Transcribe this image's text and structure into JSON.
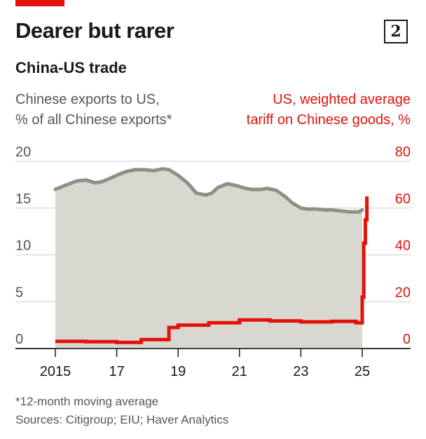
{
  "header": {
    "title": "Dearer but rarer",
    "badge": "2",
    "subtitle": "China-US trade"
  },
  "colors": {
    "accent_red": "#e3120b",
    "grey_line": "#8f8f86",
    "grey_fill": "#d9d8d0",
    "grid": "#cfcfcf",
    "text_grey": "#555555"
  },
  "chart_data": {
    "type": "line",
    "x_ticks": [
      "2015",
      "17",
      "19",
      "21",
      "23",
      "25"
    ],
    "left_axis": {
      "label_line1": "Chinese exports to US,",
      "label_line2": "% of all Chinese exports*",
      "ticks": [
        "20",
        "15",
        "10",
        "5",
        "0"
      ],
      "ylim": [
        0,
        20
      ]
    },
    "right_axis": {
      "label_line1": "US, weighted average",
      "label_line2": "tariff on Chinese goods, %",
      "ticks": [
        "80",
        "60",
        "40",
        "20",
        "0"
      ],
      "ylim": [
        0,
        80
      ]
    },
    "grid": true,
    "series": [
      {
        "style": "grey area line",
        "axis": "left",
        "x": [
          2015.0,
          2015.3,
          2015.7,
          2016.0,
          2016.3,
          2016.5,
          2016.8,
          2017.0,
          2017.3,
          2017.6,
          2017.9,
          2018.2,
          2018.5,
          2018.7,
          2019.0,
          2019.3,
          2019.6,
          2019.9,
          2020.1,
          2020.3,
          2020.6,
          2020.9,
          2021.2,
          2021.4,
          2021.7,
          2021.9,
          2022.2,
          2022.5,
          2022.7,
          2023.0,
          2023.2,
          2023.5,
          2023.8,
          2024.0,
          2024.3,
          2024.6,
          2024.9,
          2025.0
        ],
        "y": [
          17.0,
          17.4,
          17.9,
          18.0,
          17.7,
          17.8,
          18.2,
          18.5,
          18.9,
          19.1,
          19.1,
          19.0,
          19.2,
          19.1,
          18.5,
          17.7,
          16.6,
          16.4,
          16.6,
          17.2,
          17.6,
          17.4,
          17.1,
          17.0,
          17.0,
          17.1,
          16.9,
          16.2,
          15.6,
          15.0,
          14.9,
          14.9,
          14.8,
          14.8,
          14.7,
          14.6,
          14.6,
          14.8
        ]
      },
      {
        "style": "red step line",
        "axis": "right",
        "x": [
          2015.0,
          2016.0,
          2017.0,
          2017.8,
          2018.7,
          2019.0,
          2020.0,
          2021.0,
          2022.0,
          2023.0,
          2024.0,
          2024.8,
          2025.0,
          2025.05,
          2025.1,
          2025.15
        ],
        "y": [
          3.1,
          2.9,
          2.6,
          3.8,
          9.0,
          10.0,
          11.0,
          12.2,
          11.8,
          11.4,
          11.6,
          11.0,
          22.0,
          45.0,
          55.0,
          65.0
        ]
      }
    ]
  },
  "footnote": {
    "note": "*12-month moving average",
    "sources": "Sources: Citigroup; EIU; Haver Analytics"
  }
}
